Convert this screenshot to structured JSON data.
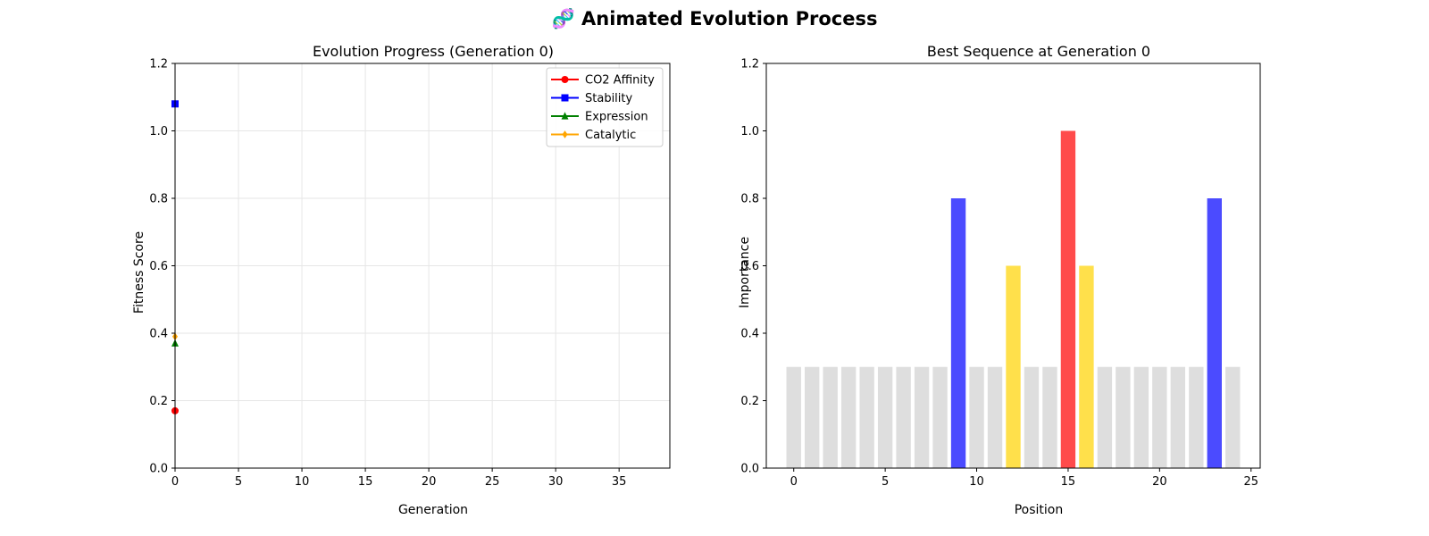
{
  "figure": {
    "title": "🧬 Animated Evolution Process"
  },
  "chart_data": [
    {
      "type": "line",
      "title": "Evolution Progress (Generation 0)",
      "xlabel": "Generation",
      "ylabel": "Fitness Score",
      "xlim": [
        0,
        39
      ],
      "ylim": [
        0,
        1.2
      ],
      "xticks": [
        0,
        5,
        10,
        15,
        20,
        25,
        30,
        35
      ],
      "yticks": [
        0.0,
        0.2,
        0.4,
        0.6,
        0.8,
        1.0,
        1.2
      ],
      "grid": true,
      "legend_position": "top-right",
      "x": [
        0
      ],
      "series": [
        {
          "name": "CO2 Affinity",
          "values": [
            0.17
          ],
          "color": "#ff0000",
          "marker": "circle"
        },
        {
          "name": "Stability",
          "values": [
            1.08
          ],
          "color": "#0000ff",
          "marker": "square"
        },
        {
          "name": "Expression",
          "values": [
            0.37
          ],
          "color": "#008000",
          "marker": "triangle"
        },
        {
          "name": "Catalytic",
          "values": [
            0.39
          ],
          "color": "#ffa500",
          "marker": "diamond"
        }
      ]
    },
    {
      "type": "bar",
      "title": "Best Sequence at Generation 0",
      "xlabel": "Position",
      "ylabel": "Importance",
      "xlim": [
        -1.5,
        25.5
      ],
      "ylim": [
        0,
        1.2
      ],
      "xticks": [
        0,
        5,
        10,
        15,
        20,
        25
      ],
      "yticks": [
        0.0,
        0.2,
        0.4,
        0.6,
        0.8,
        1.0,
        1.2
      ],
      "grid": false,
      "categories": [
        0,
        1,
        2,
        3,
        4,
        5,
        6,
        7,
        8,
        9,
        10,
        11,
        12,
        13,
        14,
        15,
        16,
        17,
        18,
        19,
        20,
        21,
        22,
        23,
        24
      ],
      "values": [
        0.3,
        0.3,
        0.3,
        0.3,
        0.3,
        0.3,
        0.3,
        0.3,
        0.3,
        0.8,
        0.3,
        0.3,
        0.6,
        0.3,
        0.3,
        1.0,
        0.6,
        0.3,
        0.3,
        0.3,
        0.3,
        0.3,
        0.3,
        0.8,
        0.3
      ],
      "colors": [
        "#dedede",
        "#dedede",
        "#dedede",
        "#dedede",
        "#dedede",
        "#dedede",
        "#dedede",
        "#dedede",
        "#dedede",
        "#4b4bff",
        "#dedede",
        "#dedede",
        "#ffe04b",
        "#dedede",
        "#dedede",
        "#ff4b4b",
        "#ffe04b",
        "#dedede",
        "#dedede",
        "#dedede",
        "#dedede",
        "#dedede",
        "#dedede",
        "#4b4bff",
        "#dedede"
      ]
    }
  ]
}
